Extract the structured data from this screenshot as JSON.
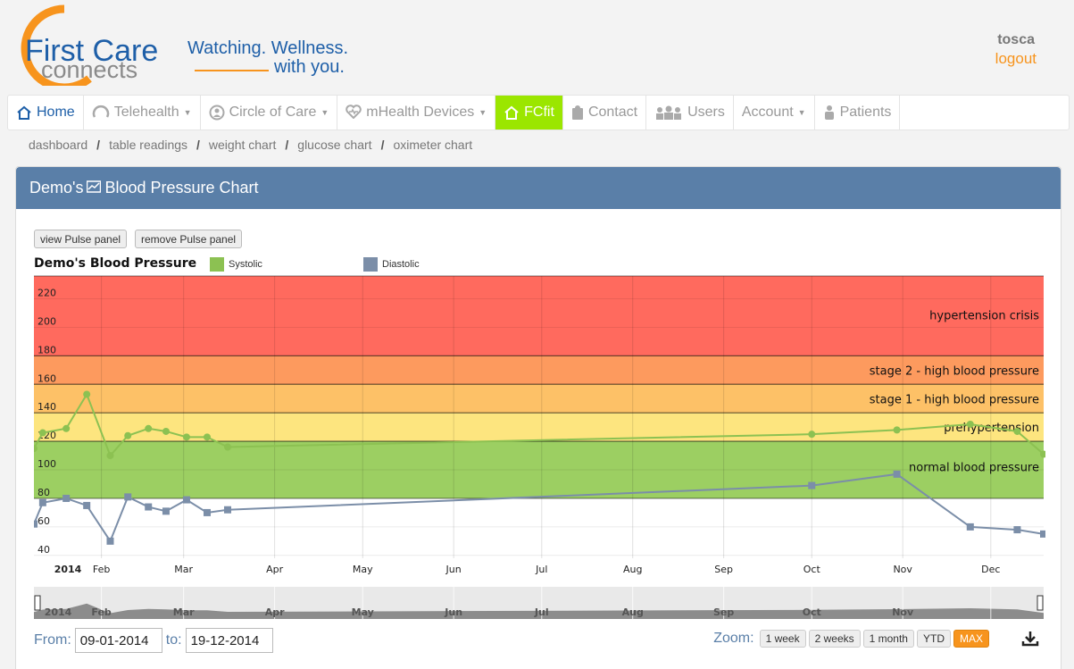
{
  "brand": {
    "logo_word1": "First Care",
    "logo_word2": "connects",
    "tagline_line1": "Watching. Wellness.",
    "tagline_line2": "with you."
  },
  "user": {
    "name": "tosca",
    "logout": "logout"
  },
  "nav": [
    {
      "label": "Home",
      "icon": "home-icon",
      "caret": false,
      "state": "home"
    },
    {
      "label": "Telehealth",
      "icon": "telehealth-icon",
      "caret": true
    },
    {
      "label": "Circle of Care",
      "icon": "circle-of-care-icon",
      "caret": true
    },
    {
      "label": "mHealth Devices",
      "icon": "heart-pulse-icon",
      "caret": true
    },
    {
      "label": "FCfit",
      "icon": "home-fit-icon",
      "caret": false,
      "state": "active"
    },
    {
      "label": "Contact",
      "icon": "contact-icon",
      "caret": false
    },
    {
      "label": "Users",
      "icon": "users-icon",
      "caret": false
    },
    {
      "label": "Account",
      "icon": "",
      "caret": true
    },
    {
      "label": "Patients",
      "icon": "patient-icon",
      "caret": false
    }
  ],
  "breadcrumbs": [
    "dashboard",
    "table readings",
    "weight chart",
    "glucose chart",
    "oximeter chart"
  ],
  "panel": {
    "title_prefix": "Demo's",
    "title_suffix": "Blood Pressure Chart",
    "btn_view": "view Pulse panel",
    "btn_remove": "remove Pulse panel"
  },
  "chart_data": {
    "type": "line",
    "title": "Demo's Blood Pressure",
    "legend": [
      "Systolic",
      "Diastolic"
    ],
    "colors": {
      "systolic": "#8cc152",
      "diastolic": "#7b8ea8"
    },
    "ylim": [
      38,
      236
    ],
    "yticks": [
      40,
      60,
      80,
      100,
      120,
      140,
      160,
      180,
      200,
      220
    ],
    "xlim": [
      "2014-01-09",
      "2014-12-19"
    ],
    "x_ticks": [
      "2014",
      "Feb",
      "Mar",
      "Apr",
      "May",
      "Jun",
      "Jul",
      "Aug",
      "Sep",
      "Oct",
      "Nov",
      "Dec"
    ],
    "bands": [
      {
        "from": 180,
        "to": 236,
        "label": "hypertension crisis",
        "color": "#ff6a5e"
      },
      {
        "from": 160,
        "to": 180,
        "label": "stage 2 - high blood pressure",
        "color": "#fd9a5e"
      },
      {
        "from": 140,
        "to": 160,
        "label": "stage 1 - high blood pressure",
        "color": "#fdc167"
      },
      {
        "from": 120,
        "to": 140,
        "label": "prehypertension",
        "color": "#fde57f"
      },
      {
        "from": 80,
        "to": 120,
        "label": "normal blood pressure",
        "color": "#9ccf62"
      }
    ],
    "series": [
      {
        "name": "Systolic",
        "points": [
          [
            "2014-01-09",
            115
          ],
          [
            "2014-01-12",
            126
          ],
          [
            "2014-01-20",
            129
          ],
          [
            "2014-01-27",
            153
          ],
          [
            "2014-02-04",
            110
          ],
          [
            "2014-02-10",
            124
          ],
          [
            "2014-02-17",
            129
          ],
          [
            "2014-02-23",
            127
          ],
          [
            "2014-03-02",
            123
          ],
          [
            "2014-03-09",
            123
          ],
          [
            "2014-03-16",
            116
          ],
          [
            "2014-10-01",
            125
          ],
          [
            "2014-10-30",
            128
          ],
          [
            "2014-11-24",
            132
          ],
          [
            "2014-12-10",
            127
          ],
          [
            "2014-12-19",
            111
          ]
        ]
      },
      {
        "name": "Diastolic",
        "points": [
          [
            "2014-01-09",
            62
          ],
          [
            "2014-01-12",
            77
          ],
          [
            "2014-01-20",
            80
          ],
          [
            "2014-01-27",
            75
          ],
          [
            "2014-02-04",
            50
          ],
          [
            "2014-02-10",
            81
          ],
          [
            "2014-02-17",
            74
          ],
          [
            "2014-02-23",
            71
          ],
          [
            "2014-03-02",
            79
          ],
          [
            "2014-03-09",
            70
          ],
          [
            "2014-03-16",
            72
          ],
          [
            "2014-10-01",
            89
          ],
          [
            "2014-10-30",
            97
          ],
          [
            "2014-11-24",
            60
          ],
          [
            "2014-12-10",
            58
          ],
          [
            "2014-12-19",
            55
          ]
        ]
      }
    ],
    "navigator_labels": [
      "2014",
      "Feb",
      "Mar",
      "Apr",
      "May",
      "Jun",
      "Jul",
      "Aug",
      "Sep",
      "Oct",
      "Nov"
    ]
  },
  "range": {
    "from_label": "From:",
    "from_value": "09-01-2014",
    "to_label": "to:",
    "to_value": "19-12-2014"
  },
  "zoom": {
    "label": "Zoom:",
    "options": [
      "1 week",
      "2 weeks",
      "1 month",
      "YTD",
      "MAX"
    ],
    "selected": "MAX"
  }
}
